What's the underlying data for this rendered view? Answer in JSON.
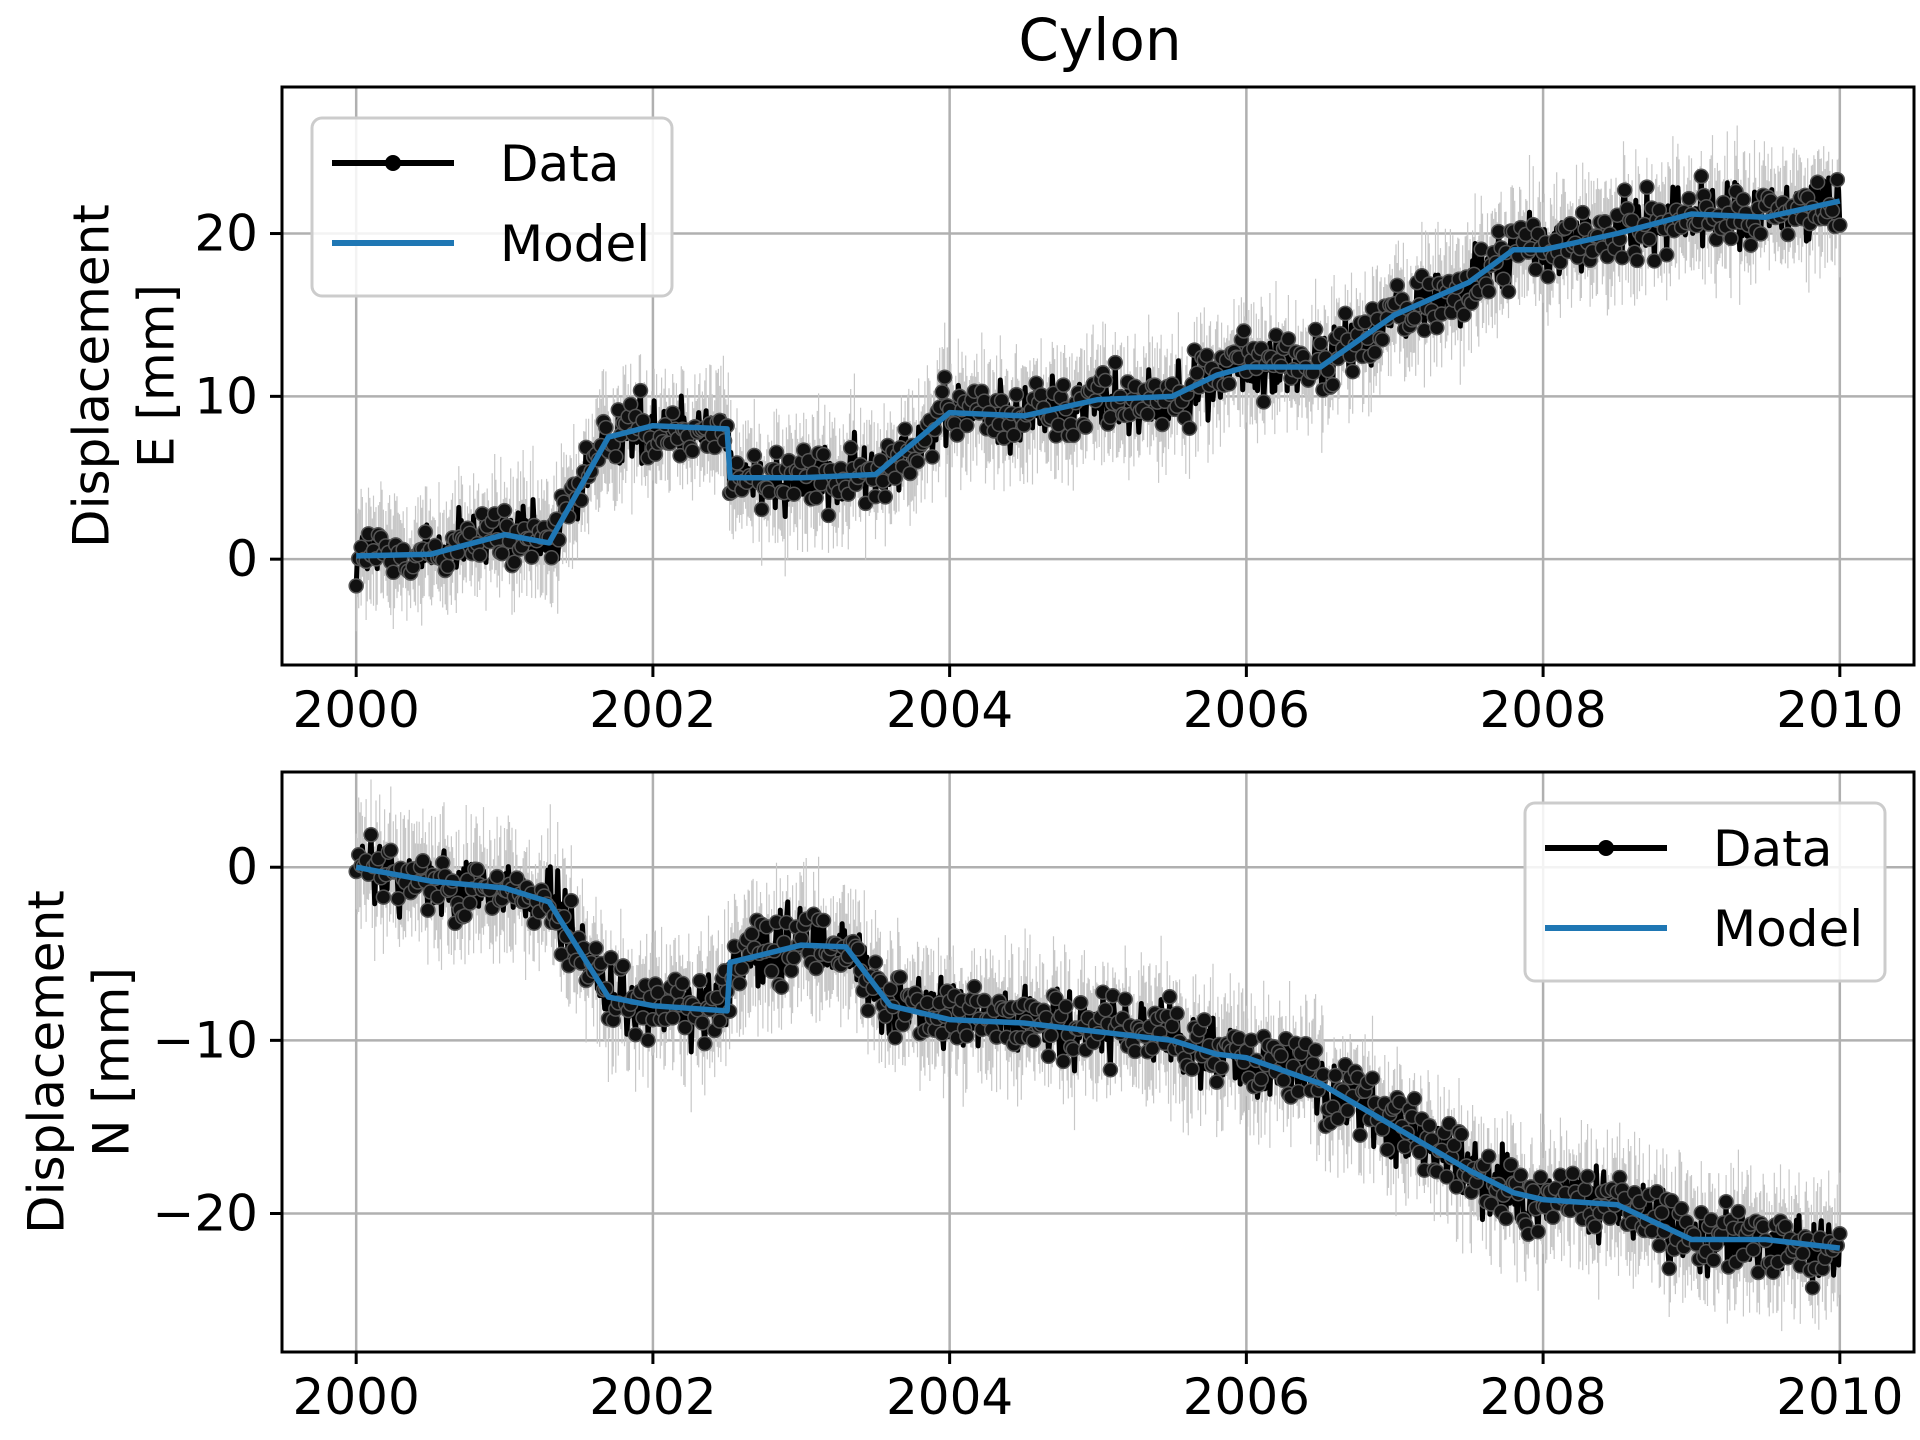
{
  "chart_data": {
    "title": "Cylon",
    "type": "line",
    "panels": [
      {
        "id": "east",
        "ylabel_lines": [
          "Displacement",
          "E [mm]"
        ],
        "xlim": [
          1999.5,
          2010.5
        ],
        "ylim": [
          -6.5,
          29
        ],
        "xticks": [
          2000,
          2002,
          2004,
          2006,
          2008,
          2010
        ],
        "xtick_labels": [
          "2000",
          "2002",
          "2004",
          "2006",
          "2008",
          "2010"
        ],
        "yticks": [
          0,
          10,
          20
        ],
        "ytick_labels": [
          "0",
          "10",
          "20"
        ],
        "grid": true,
        "legend_position": "top-left",
        "series": [
          {
            "name": "Data",
            "color": "#000000",
            "marker": "circle",
            "scatter_mm": 1.0,
            "x": [
              2000.0,
              2000.5,
              2001.0,
              2001.3,
              2001.7,
              2002.0,
              2002.5,
              2002.52,
              2003.0,
              2003.5,
              2004.0,
              2004.5,
              2005.0,
              2005.5,
              2005.8,
              2006.0,
              2006.5,
              2007.0,
              2007.5,
              2007.8,
              2008.0,
              2008.5,
              2009.0,
              2009.5,
              2010.0
            ],
            "y": [
              0.2,
              0.3,
              1.5,
              1.0,
              7.5,
              8.2,
              8.0,
              5.0,
              5.0,
              5.2,
              9.0,
              8.8,
              9.8,
              10.0,
              11.3,
              11.8,
              11.8,
              15.0,
              17.0,
              19.0,
              19.0,
              20.0,
              21.2,
              21.0,
              22.0
            ]
          },
          {
            "name": "Model",
            "color": "#1f77b4",
            "x": [
              2000.0,
              2000.5,
              2001.0,
              2001.3,
              2001.7,
              2002.0,
              2002.5,
              2002.52,
              2003.0,
              2003.5,
              2004.0,
              2004.5,
              2005.0,
              2005.5,
              2005.8,
              2006.0,
              2006.5,
              2007.0,
              2007.5,
              2007.8,
              2008.0,
              2008.5,
              2009.0,
              2009.5,
              2010.0
            ],
            "y": [
              0.2,
              0.3,
              1.5,
              1.0,
              7.5,
              8.2,
              8.0,
              5.0,
              5.0,
              5.2,
              9.0,
              8.8,
              9.8,
              10.0,
              11.3,
              11.8,
              11.8,
              15.0,
              17.0,
              19.0,
              19.0,
              20.0,
              21.2,
              21.0,
              22.0
            ]
          }
        ]
      },
      {
        "id": "north",
        "ylabel_lines": [
          "Displacement",
          "N [mm]"
        ],
        "xlim": [
          1999.5,
          2010.5
        ],
        "ylim": [
          -28,
          5.5
        ],
        "xticks": [
          2000,
          2002,
          2004,
          2006,
          2008,
          2010
        ],
        "xtick_labels": [
          "2000",
          "2002",
          "2004",
          "2006",
          "2008",
          "2010"
        ],
        "yticks": [
          0,
          -10,
          -20
        ],
        "ytick_labels": [
          "0",
          "−10",
          "−20"
        ],
        "grid": true,
        "legend_position": "top-right",
        "series": [
          {
            "name": "Data",
            "color": "#000000",
            "marker": "circle",
            "scatter_mm": 1.0,
            "x": [
              2000.0,
              2000.5,
              2001.0,
              2001.3,
              2001.7,
              2002.0,
              2002.5,
              2002.52,
              2003.0,
              2003.3,
              2003.6,
              2004.0,
              2004.5,
              2005.0,
              2005.5,
              2005.8,
              2006.0,
              2006.5,
              2007.0,
              2007.5,
              2007.8,
              2008.0,
              2008.5,
              2009.0,
              2009.5,
              2010.0
            ],
            "y": [
              0.0,
              -0.8,
              -1.2,
              -2.0,
              -7.5,
              -8.0,
              -8.3,
              -5.5,
              -4.5,
              -4.6,
              -8.0,
              -8.8,
              -9.0,
              -9.5,
              -10.0,
              -10.8,
              -11.0,
              -12.5,
              -15.0,
              -17.5,
              -18.8,
              -19.2,
              -19.5,
              -21.5,
              -21.5,
              -22.0
            ]
          },
          {
            "name": "Model",
            "color": "#1f77b4",
            "x": [
              2000.0,
              2000.5,
              2001.0,
              2001.3,
              2001.7,
              2002.0,
              2002.5,
              2002.52,
              2003.0,
              2003.3,
              2003.6,
              2004.0,
              2004.5,
              2005.0,
              2005.5,
              2005.8,
              2006.0,
              2006.5,
              2007.0,
              2007.5,
              2007.8,
              2008.0,
              2008.5,
              2009.0,
              2009.5,
              2010.0
            ],
            "y": [
              0.0,
              -0.8,
              -1.2,
              -2.0,
              -7.5,
              -8.0,
              -8.3,
              -5.5,
              -4.5,
              -4.6,
              -8.0,
              -8.8,
              -9.0,
              -9.5,
              -10.0,
              -10.8,
              -11.0,
              -12.5,
              -15.0,
              -17.5,
              -18.8,
              -19.2,
              -19.5,
              -21.5,
              -21.5,
              -22.0
            ]
          }
        ]
      }
    ]
  }
}
